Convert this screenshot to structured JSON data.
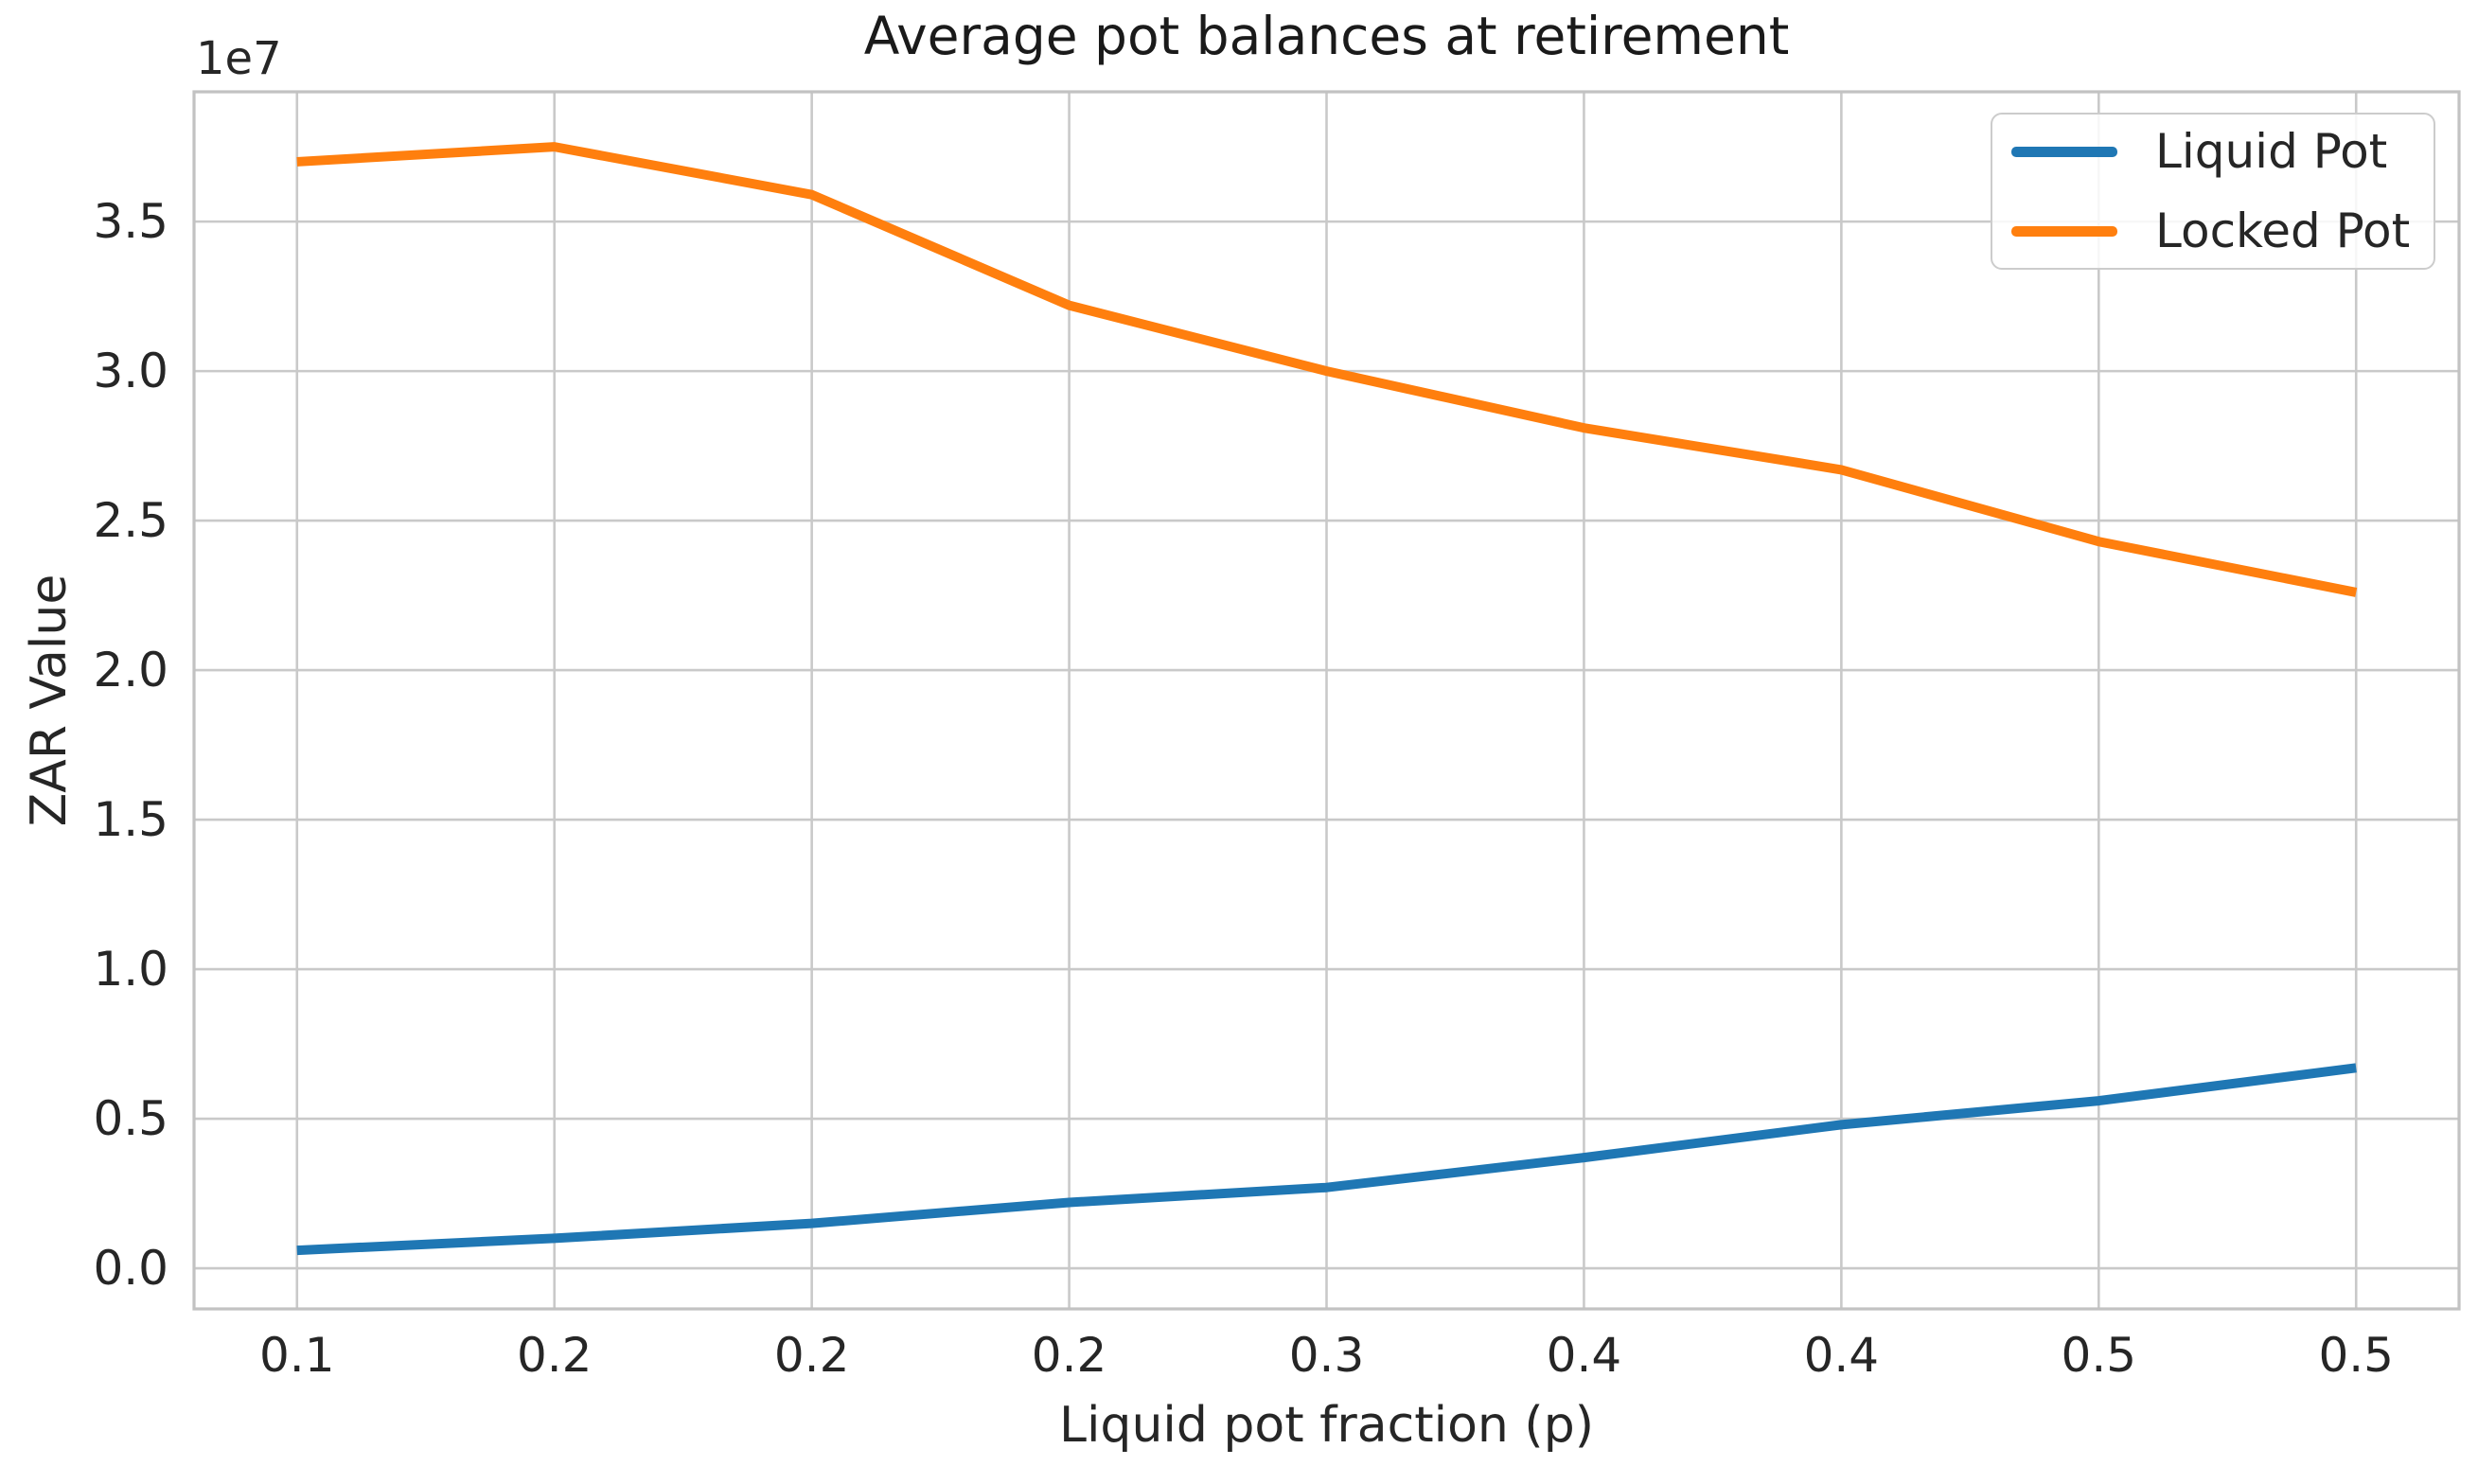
{
  "figure": {
    "title": "Average pot balances at retirement",
    "x_axis_label": "Liquid pot fraction (p)",
    "y_axis_label": "ZAR Value",
    "y_offset_label": "1e7"
  },
  "legend": {
    "position": "upper right",
    "entries": [
      {
        "label": "Liquid Pot",
        "color": "#1f77b4"
      },
      {
        "label": "Locked Pot",
        "color": "#ff7f0e"
      }
    ]
  },
  "colors": {
    "liquid_pot": "#1f77b4",
    "locked_pot": "#ff7f0e",
    "grid": "#c9c9c9",
    "spine": "#c2c2c2",
    "text": "#262626",
    "background": "#ffffff"
  },
  "chart_data": {
    "type": "line",
    "title": "Average pot balances at retirement",
    "xlabel": "Liquid pot fraction (p)",
    "ylabel": "ZAR Value",
    "y_offset_text": "1e7",
    "grid": true,
    "legend_position": "upper right",
    "x": [
      0.1,
      0.15,
      0.2,
      0.25,
      0.3,
      0.35,
      0.4,
      0.45,
      0.5
    ],
    "x_tick_labels": [
      "0.1",
      "0.2",
      "0.2",
      "0.2",
      "0.3",
      "0.4",
      "0.4",
      "0.5",
      "0.5"
    ],
    "y_tick_values": [
      0,
      5000000,
      10000000,
      15000000,
      20000000,
      25000000,
      30000000,
      35000000
    ],
    "y_tick_labels": [
      "0.0",
      "0.5",
      "1.0",
      "1.5",
      "2.0",
      "2.5",
      "3.0",
      "3.5"
    ],
    "xlim": [
      0.08,
      0.52
    ],
    "ylim": [
      -1360000,
      39340000
    ],
    "series": [
      {
        "name": "Liquid Pot",
        "color": "#1f77b4",
        "values": [
          600000,
          1000000,
          1500000,
          2200000,
          2700000,
          3700000,
          4800000,
          5600000,
          6700000
        ]
      },
      {
        "name": "Locked Pot",
        "color": "#ff7f0e",
        "values": [
          37000000,
          37500000,
          35900000,
          32200000,
          30000000,
          28100000,
          26700000,
          24300000,
          22600000
        ]
      }
    ]
  }
}
